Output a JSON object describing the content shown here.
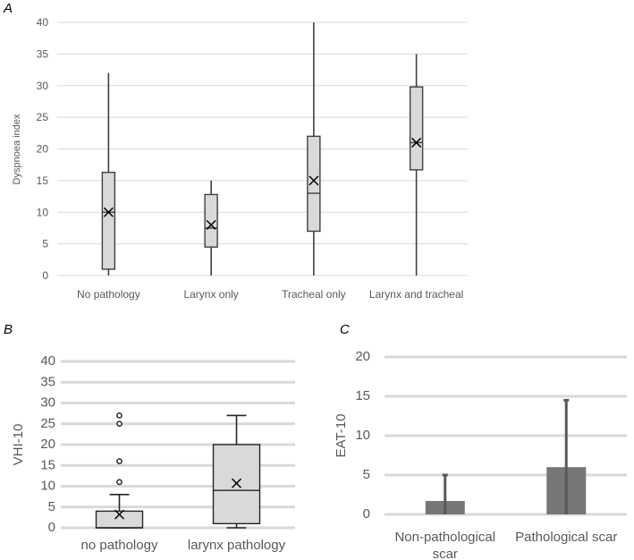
{
  "chart_data": [
    {
      "panel": "A",
      "type": "box",
      "title": "",
      "xlabel": "",
      "ylabel": "Dyspnoea index",
      "ylim": [
        0,
        40
      ],
      "yticks": [
        0,
        5,
        10,
        15,
        20,
        25,
        30,
        35,
        40
      ],
      "grid": true,
      "categories": [
        "No pathology",
        "Larynx only",
        "Tracheal only",
        "Larynx and tracheal"
      ],
      "boxes": [
        {
          "min": 0,
          "q1": 1,
          "median": 10,
          "q3": 16.3,
          "max": 32,
          "mean": 10,
          "outliers": []
        },
        {
          "min": 0,
          "q1": 4.5,
          "median": 7.5,
          "q3": 12.8,
          "max": 15,
          "mean": 8,
          "outliers": []
        },
        {
          "min": 0,
          "q1": 7,
          "median": 13,
          "q3": 22,
          "max": 40,
          "mean": 15,
          "outliers": []
        },
        {
          "min": 0,
          "q1": 16.7,
          "median": 21,
          "q3": 29.8,
          "max": 35,
          "mean": 21,
          "outliers": []
        }
      ]
    },
    {
      "panel": "B",
      "type": "box",
      "title": "",
      "xlabel": "",
      "ylabel": "VHI-10",
      "ylim": [
        0,
        40
      ],
      "yticks": [
        0,
        5,
        10,
        15,
        20,
        25,
        30,
        35,
        40
      ],
      "grid": true,
      "categories": [
        "no pathology",
        "larynx pathology"
      ],
      "boxes": [
        {
          "min": 0,
          "q1": 0,
          "median": 0,
          "q3": 4,
          "max": 8,
          "mean": 3.2,
          "outliers": [
            11,
            16,
            25,
            27
          ]
        },
        {
          "min": 0,
          "q1": 1,
          "median": 9,
          "q3": 20,
          "max": 27,
          "mean": 10.7,
          "outliers": []
        }
      ]
    },
    {
      "panel": "C",
      "type": "bar",
      "title": "",
      "xlabel": "",
      "ylabel": "EAT-10",
      "ylim": [
        0,
        20
      ],
      "yticks": [
        0,
        5,
        10,
        15,
        20
      ],
      "grid": true,
      "categories": [
        [
          "Non-pathological",
          "scar"
        ],
        [
          "Pathological scar"
        ]
      ],
      "values": [
        1.7,
        6
      ],
      "error_upper": [
        5,
        14.5
      ],
      "error_lower": [
        0,
        0
      ]
    }
  ]
}
